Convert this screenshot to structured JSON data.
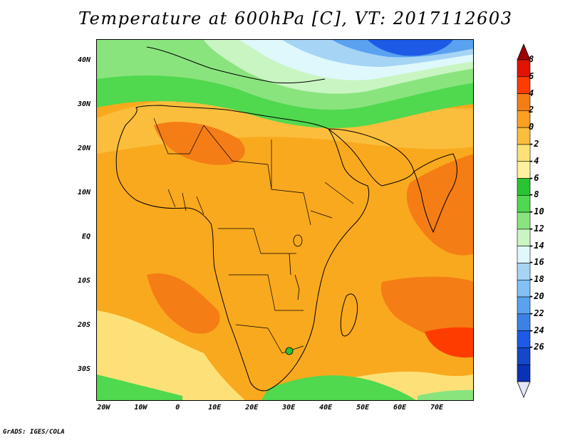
{
  "title": "Temperature at 600hPa [C], VT: 2017112603",
  "credit": "GrADS: IGES/COLA",
  "map": {
    "region": "Africa",
    "lon_range": [
      -22,
      80
    ],
    "lat_range": [
      -37,
      45
    ],
    "lat_labels": [
      "40N",
      "30N",
      "20N",
      "10N",
      "EQ",
      "10S",
      "20S",
      "30S"
    ],
    "lat_values": [
      40,
      30,
      20,
      10,
      0,
      -10,
      -20,
      -30
    ],
    "lon_labels": [
      "20W",
      "10W",
      "0",
      "10E",
      "20E",
      "30E",
      "40E",
      "50E",
      "60E",
      "70E"
    ],
    "lon_values": [
      -20,
      -10,
      0,
      10,
      20,
      30,
      40,
      50,
      60,
      70
    ]
  },
  "colorbar": {
    "labels": [
      "8",
      "6",
      "4",
      "2",
      "0",
      "-2",
      "-4",
      "-6",
      "-8",
      "-10",
      "-12",
      "-14",
      "-16",
      "-18",
      "-20",
      "-22",
      "-24",
      "-26"
    ],
    "colors": [
      "#a00000",
      "#e11400",
      "#ff3c00",
      "#f57d15",
      "#faa023",
      "#fbbe3c",
      "#fde178",
      "#fff09e",
      "#29c431",
      "#50d84e",
      "#8ae47e",
      "#c9f5c2",
      "#dff8fb",
      "#a6d4f5",
      "#82c0f5",
      "#5aa2f0",
      "#3c82e6",
      "#1e5ae6",
      "#1448c8",
      "#0a32b4",
      "#e6e6fa"
    ]
  }
}
